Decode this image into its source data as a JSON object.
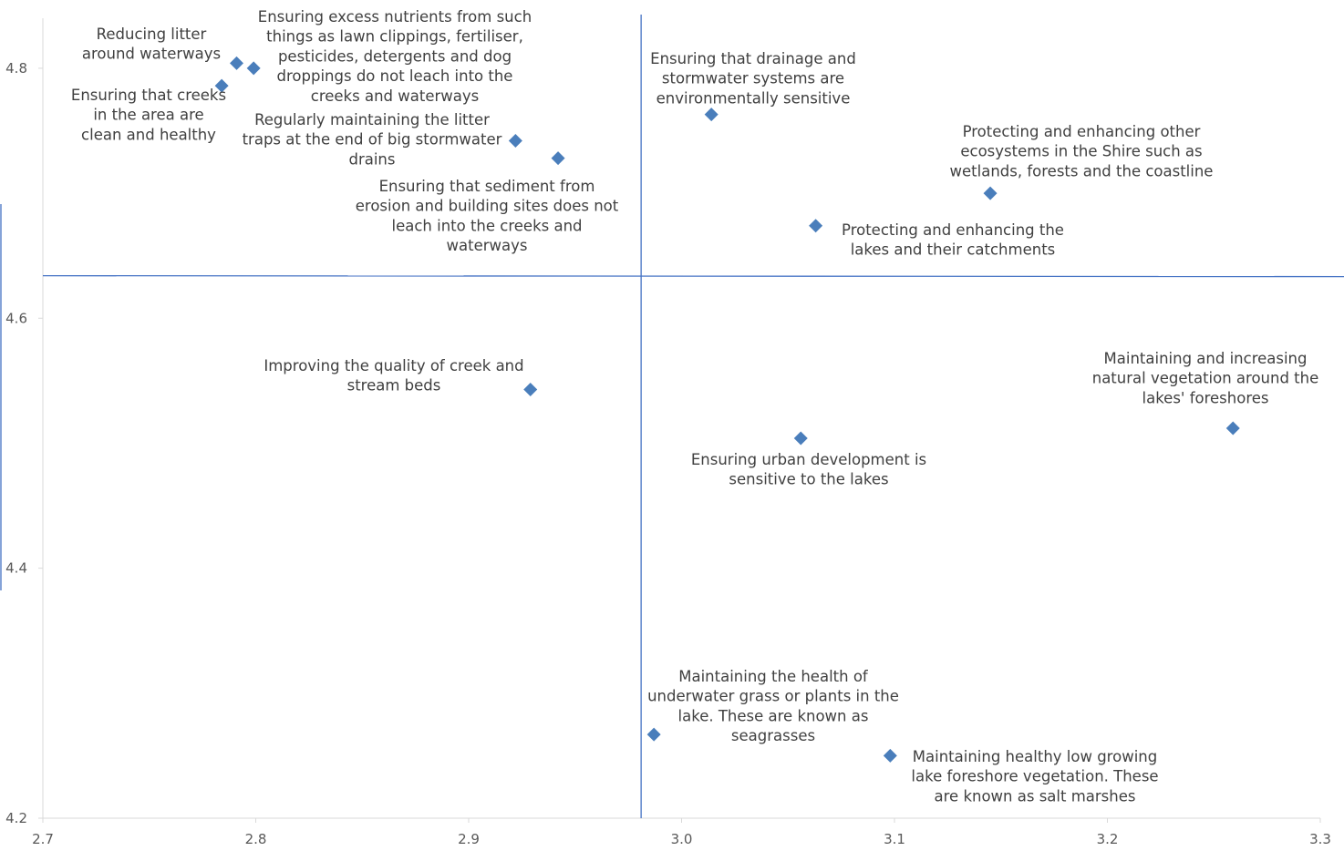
{
  "chart_data": {
    "type": "scatter",
    "title": "",
    "xlabel": "",
    "ylabel": "",
    "xlim": [
      2.7,
      3.3
    ],
    "ylim": [
      4.2,
      4.84
    ],
    "x_ticks": [
      "2.7",
      "2.8",
      "2.9",
      "3.0",
      "3.1",
      "3.2",
      "3.3"
    ],
    "y_ticks": [
      "4.2",
      "4.4",
      "4.6",
      "4.8"
    ],
    "grid": false,
    "legend": "none",
    "marker": "diamond",
    "marker_color": "#4a7ebb",
    "reference_lines": {
      "x": 2.981,
      "y": 4.634,
      "color": "#4472c4"
    },
    "points": [
      {
        "x": 2.791,
        "y": 4.804,
        "label": [
          "Reducing litter",
          "around waterways"
        ]
      },
      {
        "x": 2.799,
        "y": 4.8,
        "label": [
          "Ensuring excess nutrients from such",
          "things as lawn clippings, fertiliser,",
          "pesticides, detergents and dog",
          "droppings do not leach into the",
          "creeks and waterways"
        ]
      },
      {
        "x": 2.784,
        "y": 4.786,
        "label": [
          "Ensuring that creeks",
          "in the area are",
          "clean and healthy"
        ]
      },
      {
        "x": 2.922,
        "y": 4.742,
        "label": [
          "Regularly maintaining the litter",
          "traps at the end of big stormwater",
          "drains"
        ]
      },
      {
        "x": 2.942,
        "y": 4.728,
        "label": [
          "Ensuring that sediment from",
          "erosion and building sites does not",
          "leach into the creeks and",
          "waterways"
        ]
      },
      {
        "x": 3.014,
        "y": 4.763,
        "label": [
          "Ensuring that drainage and",
          "stormwater systems are",
          "environmentally sensitive"
        ]
      },
      {
        "x": 3.145,
        "y": 4.7,
        "label": [
          "Protecting and enhancing other",
          "ecosystems in the Shire such as",
          "wetlands, forests and the coastline"
        ]
      },
      {
        "x": 3.063,
        "y": 4.674,
        "label": [
          "Protecting and enhancing the",
          "lakes and their catchments"
        ]
      },
      {
        "x": 2.929,
        "y": 4.543,
        "label": [
          "Improving the quality of creek and",
          "stream beds"
        ]
      },
      {
        "x": 3.056,
        "y": 4.504,
        "label": [
          "Ensuring urban development is",
          "sensitive to the lakes"
        ]
      },
      {
        "x": 3.259,
        "y": 4.512,
        "label": [
          "Maintaining and increasing",
          "natural vegetation around the",
          "lakes' foreshores"
        ]
      },
      {
        "x": 2.987,
        "y": 4.267,
        "label": [
          "Maintaining the health of",
          "underwater grass or plants in the",
          "lake. These are known as",
          "seagrasses"
        ]
      },
      {
        "x": 3.098,
        "y": 4.25,
        "label": [
          "Maintaining healthy low growing",
          "lake foreshore vegetation. These",
          "are known as salt marshes"
        ]
      }
    ]
  }
}
